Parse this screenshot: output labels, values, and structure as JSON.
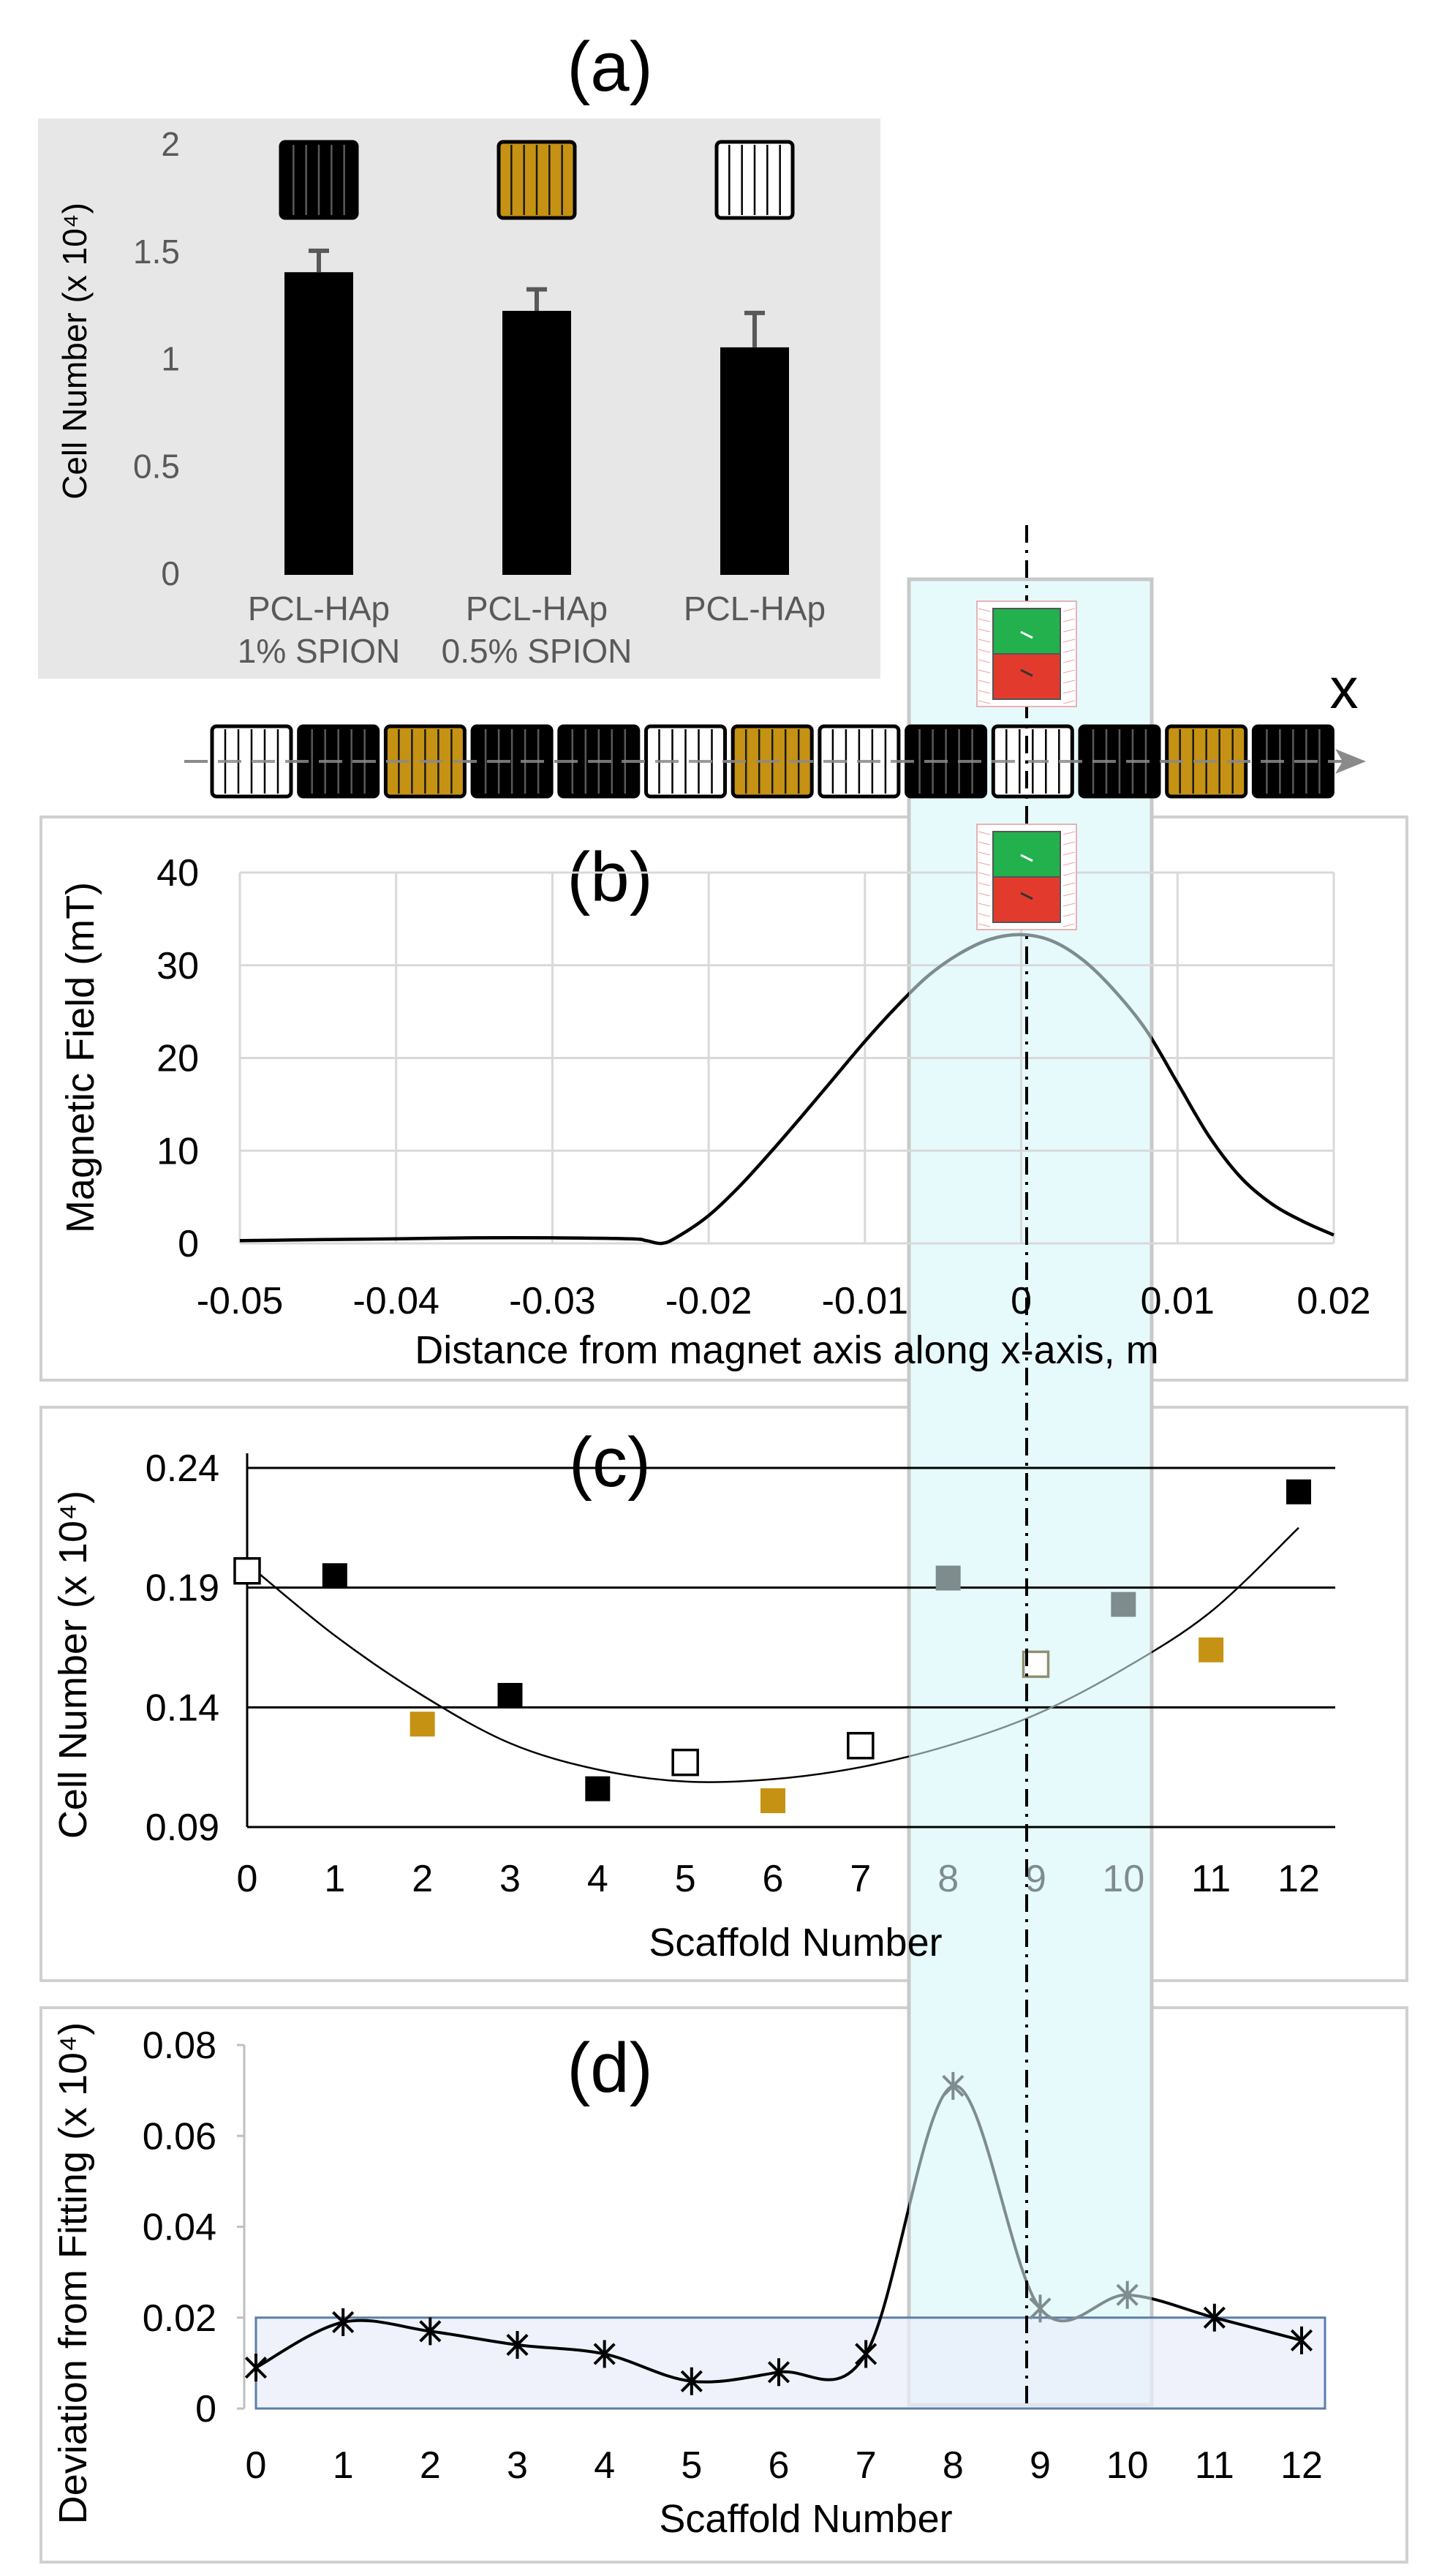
{
  "colors": {
    "black": "#000000",
    "gold": "#C69214",
    "gray": "#7F8C8D",
    "panel_a_bg": "#E7E7E7",
    "highlight": "#E6FAFC",
    "band": "#E9EEFA",
    "band_stroke": "#5B7FA8",
    "gridline": "#D9D9D9",
    "axis_text": "#595959",
    "magnet_green": "#22B14C",
    "magnet_red": "#E23B2E"
  },
  "icons": [
    "magnet-icon",
    "scaffold-icon"
  ],
  "x_axis_label": "x",
  "scaffold_row": [
    "white",
    "black",
    "gold",
    "black",
    "black",
    "white",
    "gold",
    "white",
    "black",
    "white",
    "black",
    "gold",
    "black"
  ],
  "chart_data": [
    {
      "id": "a",
      "panel_label": "(a)",
      "type": "bar",
      "categories": [
        {
          "line1": "PCL-HAp",
          "line2": "1% SPION",
          "scaffold": "black"
        },
        {
          "line1": "PCL-HAp",
          "line2": "0.5% SPION",
          "scaffold": "gold"
        },
        {
          "line1": "PCL-HAp",
          "line2": "",
          "scaffold": "white"
        }
      ],
      "values": [
        1.41,
        1.23,
        1.06
      ],
      "errors": [
        0.1,
        0.1,
        0.16
      ],
      "ylabel": "Cell Number (x 10⁴)",
      "ylim": [
        0,
        2
      ],
      "yticks": [
        "0",
        "0.5",
        "1",
        "1.5",
        "2"
      ]
    },
    {
      "id": "b",
      "panel_label": "(b)",
      "type": "line",
      "x": [
        -0.05,
        -0.045,
        -0.04,
        -0.035,
        -0.03,
        -0.025,
        -0.024,
        -0.023,
        -0.022,
        -0.02,
        -0.018,
        -0.016,
        -0.014,
        -0.012,
        -0.01,
        -0.008,
        -0.006,
        -0.004,
        -0.002,
        0.0,
        0.002,
        0.004,
        0.006,
        0.008,
        0.01,
        0.012,
        0.014,
        0.016,
        0.018,
        0.02
      ],
      "y": [
        0.3,
        0.4,
        0.5,
        0.6,
        0.6,
        0.5,
        0.3,
        0.0,
        0.7,
        3.0,
        6.2,
        9.9,
        13.8,
        17.8,
        21.8,
        25.5,
        28.8,
        31.2,
        32.8,
        33.3,
        32.6,
        30.5,
        27.2,
        23.0,
        17.3,
        11.6,
        7.2,
        4.3,
        2.4,
        0.9
      ],
      "xlabel": "Distance from magnet axis along x-axis,  m",
      "ylabel": "Magnetic Field (mT)",
      "xlim": [
        -0.05,
        0.02
      ],
      "ylim": [
        0,
        40
      ],
      "xticks": [
        "-0.05",
        "-0.04",
        "-0.03",
        "-0.02",
        "-0.01",
        "0",
        "0.01",
        "0.02"
      ],
      "yticks": [
        "0",
        "10",
        "20",
        "30",
        "40"
      ]
    },
    {
      "id": "c",
      "panel_label": "(c)",
      "type": "scatter",
      "x": [
        0,
        1,
        2,
        3,
        4,
        5,
        6,
        7,
        8,
        9,
        10,
        11,
        12
      ],
      "y": [
        0.197,
        0.195,
        0.133,
        0.145,
        0.106,
        0.117,
        0.101,
        0.124,
        0.194,
        0.158,
        0.183,
        0.164,
        0.23
      ],
      "point_styles": [
        "white",
        "black",
        "gold",
        "black",
        "black",
        "white",
        "gold",
        "white",
        "gray",
        "white",
        "gray",
        "gold",
        "black"
      ],
      "fit": {
        "type": "quadratic",
        "x": [
          0,
          1,
          2,
          3,
          4,
          5,
          6,
          7,
          8,
          9,
          10,
          11,
          12
        ],
        "y": [
          0.2,
          0.17,
          0.145,
          0.125,
          0.114,
          0.109,
          0.11,
          0.115,
          0.124,
          0.137,
          0.156,
          0.18,
          0.215
        ]
      },
      "xlabel": "Scaffold Number",
      "ylabel": "Cell Number (x 10⁴)",
      "xlim": [
        0,
        12
      ],
      "ylim": [
        0.09,
        0.24
      ],
      "xticks": [
        "0",
        "1",
        "2",
        "3",
        "4",
        "5",
        "6",
        "7",
        "8",
        "9",
        "10",
        "11",
        "12"
      ],
      "yticks": [
        "0.09",
        "0.14",
        "0.19",
        "0.24"
      ]
    },
    {
      "id": "d",
      "panel_label": "(d)",
      "type": "line",
      "x": [
        0,
        1,
        2,
        3,
        4,
        5,
        6,
        7,
        8,
        9,
        10,
        11,
        12
      ],
      "y": [
        0.009,
        0.019,
        0.017,
        0.014,
        0.012,
        0.006,
        0.008,
        0.012,
        0.071,
        0.022,
        0.025,
        0.02,
        0.015
      ],
      "band": [
        0,
        0.02
      ],
      "xlabel": "Scaffold Number",
      "ylabel": "Deviation from Fitting (x 10⁴)",
      "xlim": [
        0,
        12
      ],
      "ylim": [
        0,
        0.08
      ],
      "xticks": [
        "0",
        "1",
        "2",
        "3",
        "4",
        "5",
        "6",
        "7",
        "8",
        "9",
        "10",
        "11",
        "12"
      ],
      "yticks": [
        "0",
        "0.02",
        "0.04",
        "0.06",
        "0.08"
      ]
    }
  ]
}
